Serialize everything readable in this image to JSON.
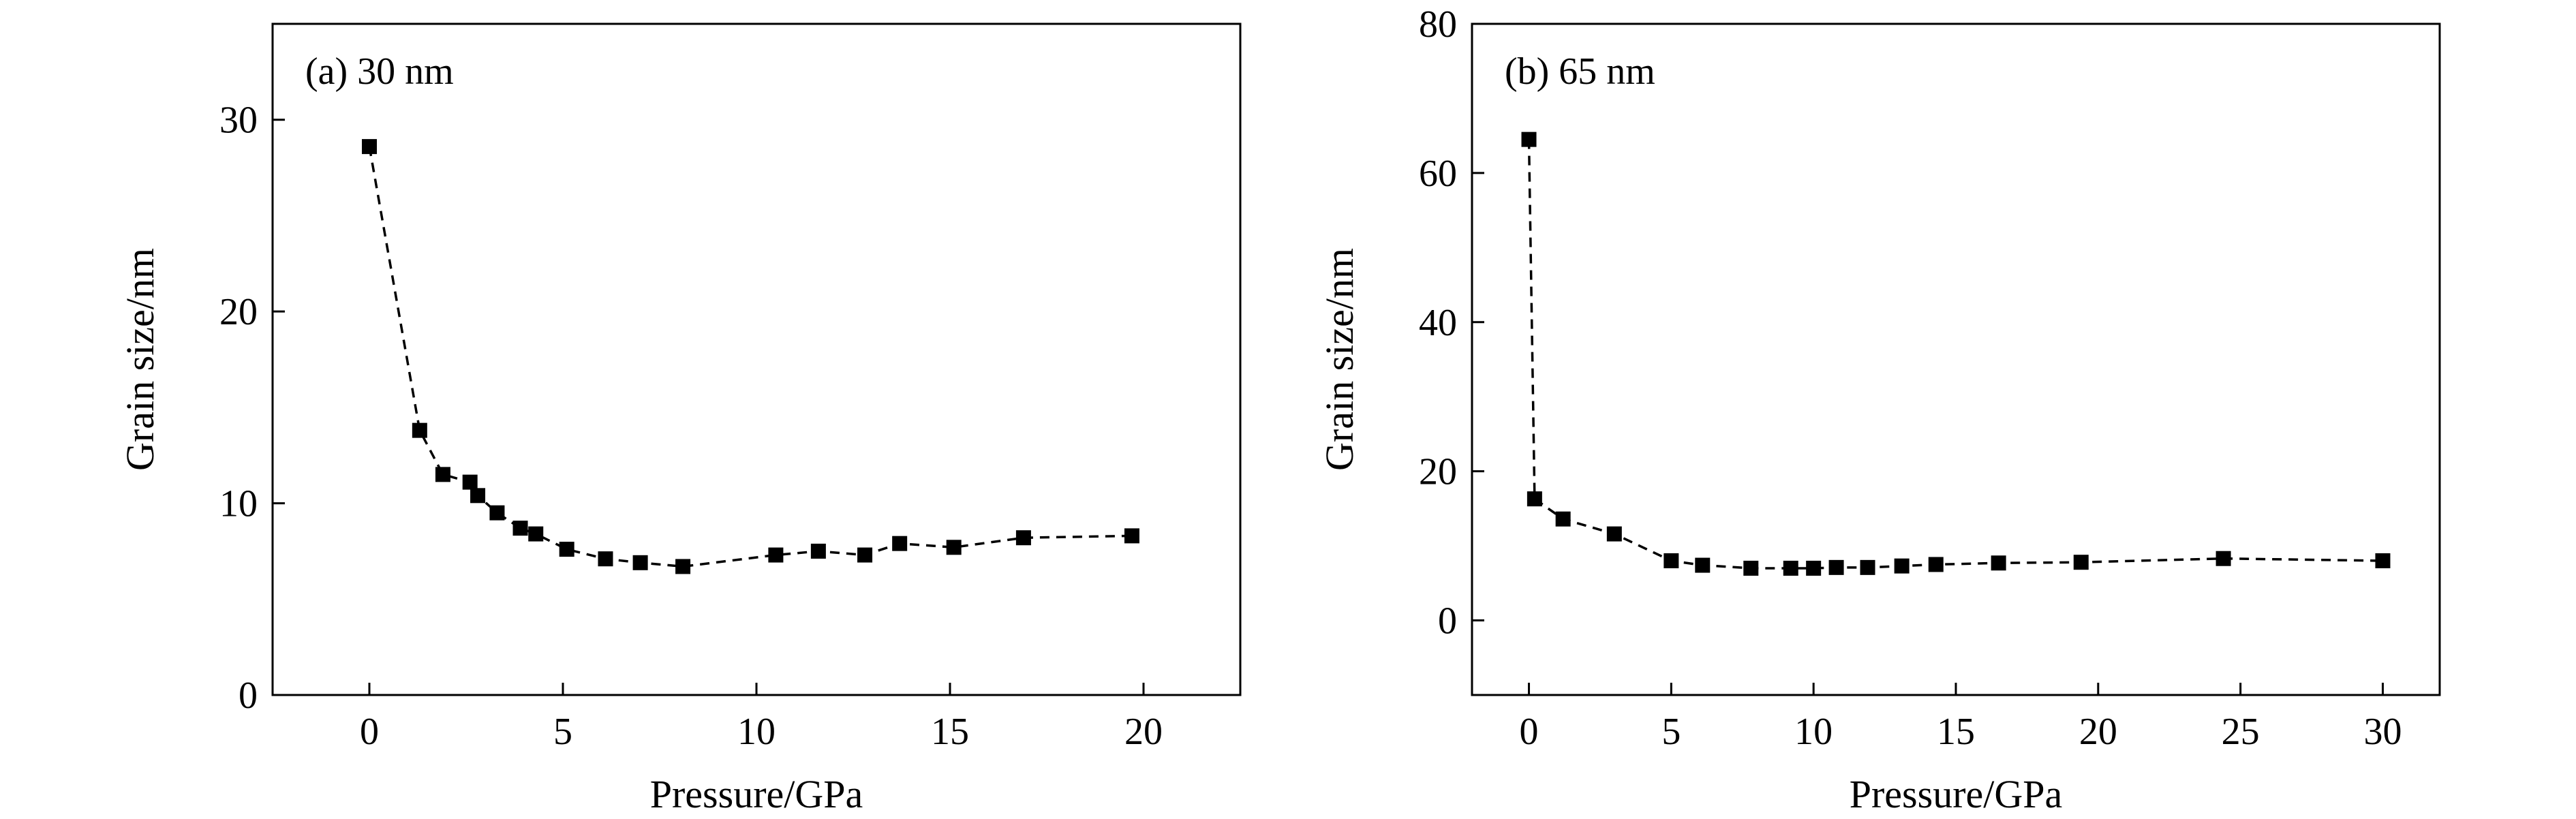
{
  "chart_data": [
    {
      "type": "line",
      "panel_label": "(a) 30 nm",
      "xlabel": "Pressure/GPa",
      "ylabel": "Grain size/nm",
      "xlim": [
        -2.5,
        22.5
      ],
      "ylim": [
        0,
        35
      ],
      "xticks": [
        0,
        5,
        10,
        15,
        20
      ],
      "yticks": [
        0,
        10,
        20,
        30
      ],
      "line_style": "dashed",
      "marker": "square",
      "color": "#000000",
      "series": [
        {
          "x": [
            0,
            1.3,
            1.9,
            2.6,
            2.8,
            3.3,
            3.9,
            4.3,
            5.1,
            6.1,
            7.0,
            8.1,
            10.5,
            11.6,
            12.8,
            13.7,
            15.1,
            16.9,
            19.7
          ],
          "y": [
            28.6,
            13.8,
            11.5,
            11.1,
            10.4,
            9.5,
            8.7,
            8.4,
            7.6,
            7.1,
            6.9,
            6.7,
            7.3,
            7.5,
            7.3,
            7.9,
            7.7,
            8.2,
            8.3
          ]
        }
      ]
    },
    {
      "type": "line",
      "panel_label": "(b) 65 nm",
      "xlabel": "Pressure/GPa",
      "ylabel": "Grain size/nm",
      "xlim": [
        -2,
        32
      ],
      "ylim": [
        -10,
        80
      ],
      "xticks": [
        0,
        5,
        10,
        15,
        20,
        25,
        30
      ],
      "yticks": [
        0,
        20,
        40,
        60,
        80
      ],
      "line_style": "dashed",
      "marker": "square",
      "color": "#000000",
      "series": [
        {
          "x": [
            0,
            0.2,
            1.2,
            3.0,
            5.0,
            6.1,
            7.8,
            9.2,
            10.0,
            10.8,
            11.9,
            13.1,
            14.3,
            16.5,
            19.4,
            24.4,
            30.0
          ],
          "y": [
            64.5,
            16.3,
            13.6,
            11.6,
            8.0,
            7.4,
            7.0,
            7.0,
            7.0,
            7.1,
            7.1,
            7.3,
            7.5,
            7.7,
            7.8,
            8.3,
            8.0
          ]
        }
      ]
    }
  ]
}
